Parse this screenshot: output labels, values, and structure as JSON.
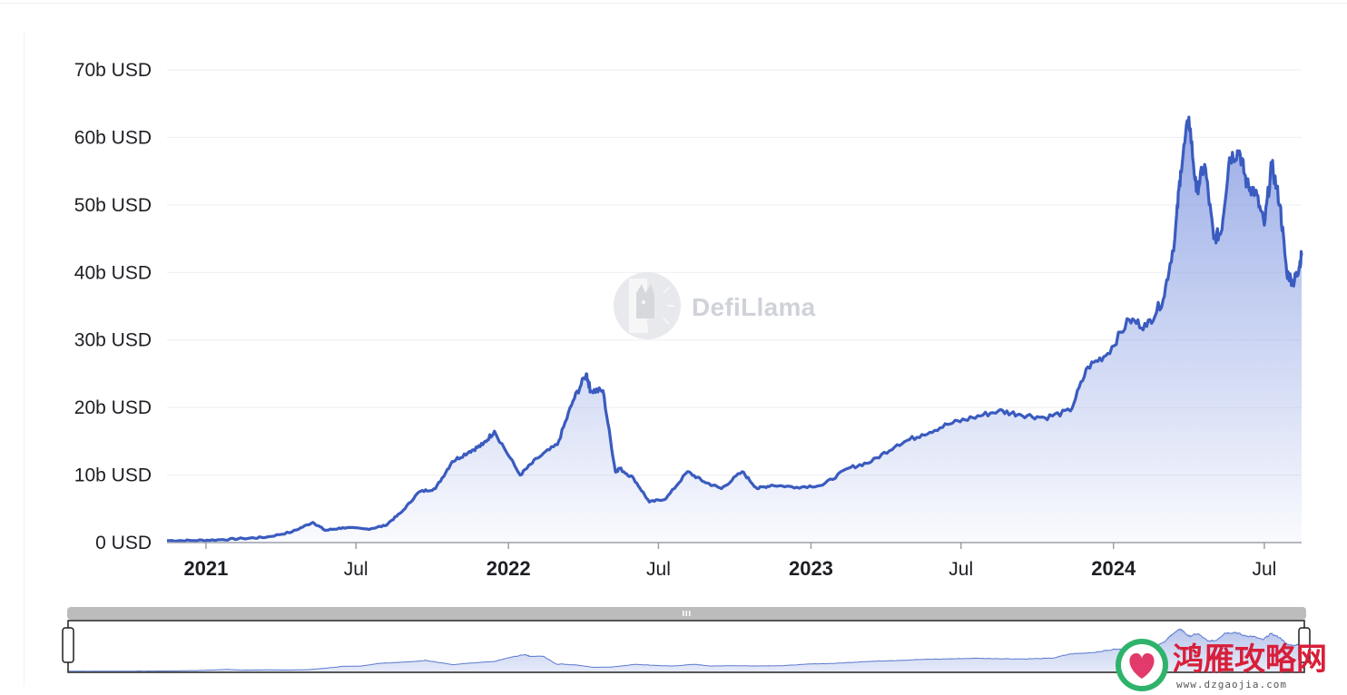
{
  "chart_data": {
    "type": "area",
    "title": "",
    "xlabel": "",
    "ylabel": "",
    "ylim": [
      0,
      70
    ],
    "y_unit": "b USD",
    "y_ticks": [
      "0 USD",
      "10b USD",
      "20b USD",
      "30b USD",
      "40b USD",
      "50b USD",
      "60b USD",
      "70b USD"
    ],
    "x_ticks": [
      {
        "label": "2021",
        "date": "2021-01-01",
        "major": true
      },
      {
        "label": "Jul",
        "date": "2021-07-01",
        "major": false
      },
      {
        "label": "2022",
        "date": "2022-01-01",
        "major": true
      },
      {
        "label": "Jul",
        "date": "2022-07-01",
        "major": false
      },
      {
        "label": "2023",
        "date": "2023-01-01",
        "major": true
      },
      {
        "label": "Jul",
        "date": "2023-07-01",
        "major": false
      },
      {
        "label": "2024",
        "date": "2024-01-01",
        "major": true
      },
      {
        "label": "Jul",
        "date": "2024-07-01",
        "major": false
      }
    ],
    "xlim": [
      "2020-11-15",
      "2024-08-15"
    ],
    "grid": true,
    "legend": "none",
    "line_color": "#3a5bbf",
    "fill_color": "#8fa3e4",
    "series": [
      {
        "x": [
          "2020-11-15",
          "2020-12-15",
          "2021-01-15",
          "2021-02-15",
          "2021-03-15",
          "2021-04-15",
          "2021-05-10",
          "2021-05-25",
          "2021-06-15",
          "2021-07-15",
          "2021-08-05",
          "2021-08-25",
          "2021-09-15",
          "2021-10-05",
          "2021-10-25",
          "2021-11-15",
          "2021-12-01",
          "2021-12-15",
          "2022-01-15",
          "2022-02-05",
          "2022-03-01",
          "2022-03-20",
          "2022-04-05",
          "2022-04-10",
          "2022-04-25",
          "2022-05-10",
          "2022-05-15",
          "2022-06-01",
          "2022-06-20",
          "2022-07-10",
          "2022-08-05",
          "2022-08-25",
          "2022-09-15",
          "2022-10-10",
          "2022-10-28",
          "2022-11-15",
          "2022-12-15",
          "2023-01-15",
          "2023-02-15",
          "2023-03-15",
          "2023-04-15",
          "2023-05-15",
          "2023-06-15",
          "2023-07-15",
          "2023-08-15",
          "2023-09-10",
          "2023-10-10",
          "2023-11-10",
          "2023-12-01",
          "2023-12-25",
          "2024-01-20",
          "2024-02-10",
          "2024-03-01",
          "2024-03-15",
          "2024-03-22",
          "2024-04-01",
          "2024-04-10",
          "2024-04-20",
          "2024-05-01",
          "2024-05-10",
          "2024-05-20",
          "2024-06-01",
          "2024-06-10",
          "2024-06-20",
          "2024-07-01",
          "2024-07-10",
          "2024-07-20",
          "2024-07-28",
          "2024-08-05",
          "2024-08-10",
          "2024-08-15"
        ],
        "values": [
          0.3,
          0.3,
          0.4,
          0.6,
          0.8,
          1.6,
          3.0,
          1.8,
          2.2,
          2.0,
          2.5,
          4.5,
          7.5,
          8.0,
          12.0,
          13.5,
          14.5,
          16.5,
          10.0,
          12.5,
          14.5,
          21.0,
          25.0,
          22.5,
          22.5,
          10.5,
          11.0,
          9.5,
          6.0,
          6.5,
          10.5,
          9.0,
          8.0,
          10.5,
          8.0,
          8.5,
          8.2,
          8.5,
          11.0,
          12.0,
          14.5,
          16.0,
          17.5,
          18.5,
          19.5,
          19.0,
          18.5,
          19.5,
          26.0,
          28.0,
          33.0,
          32.0,
          36.0,
          45.0,
          55.0,
          63.0,
          52.0,
          56.0,
          45.0,
          46.0,
          57.0,
          58.0,
          53.0,
          52.0,
          47.0,
          56.0,
          50.0,
          40.0,
          38.5,
          40.0,
          42.5
        ]
      }
    ]
  },
  "watermark": {
    "brand": "DefiLlama"
  },
  "overlay": {
    "title": "鸿雁攻略网",
    "url": "www.dzgaojia.com"
  }
}
